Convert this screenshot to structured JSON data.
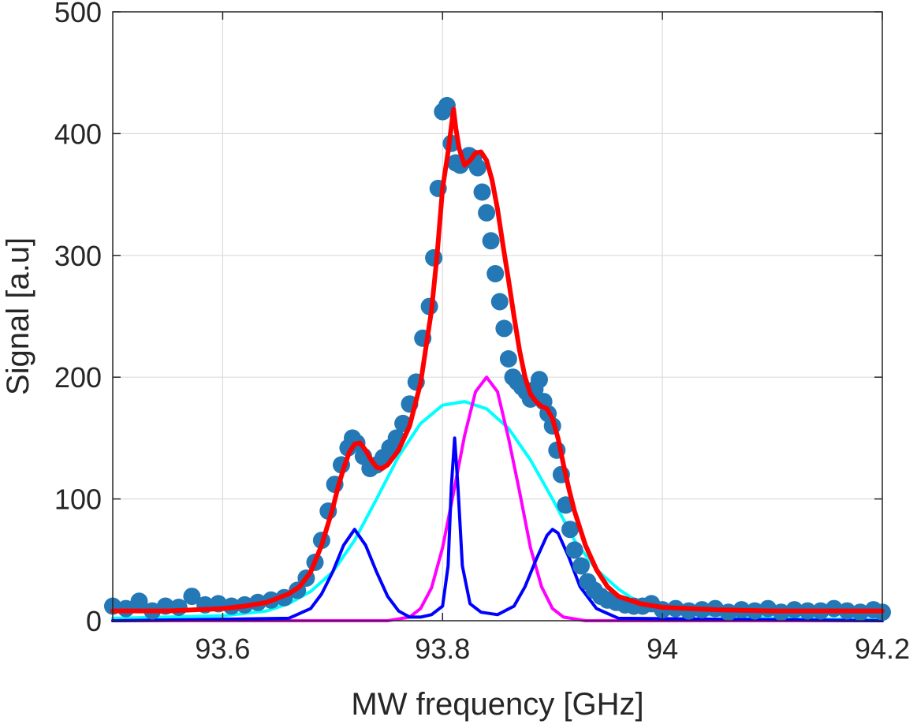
{
  "chart_data": {
    "type": "scatter",
    "title": "",
    "xlabel": "MW frequency [GHz]",
    "ylabel": "Signal [a.u]",
    "xlim": [
      93.5,
      94.2
    ],
    "ylim": [
      0,
      500
    ],
    "grid": true,
    "legend": "none",
    "x_ticks": [
      93.6,
      93.8,
      94,
      94.2
    ],
    "x_tick_labels": [
      "93.6",
      "93.8",
      "94",
      "94.2"
    ],
    "y_ticks": [
      0,
      100,
      200,
      300,
      400,
      500
    ],
    "y_tick_labels": [
      "0",
      "100",
      "200",
      "300",
      "400",
      "500"
    ],
    "measured": {
      "color": "#2378b5",
      "x": [
        93.5,
        93.512,
        93.524,
        93.536,
        93.548,
        93.56,
        93.572,
        93.584,
        93.596,
        93.608,
        93.62,
        93.632,
        93.644,
        93.656,
        93.668,
        93.676,
        93.684,
        93.69,
        93.696,
        93.702,
        93.708,
        93.714,
        93.718,
        93.722,
        93.728,
        93.734,
        93.74,
        93.746,
        93.752,
        93.758,
        93.764,
        93.77,
        93.776,
        93.782,
        93.788,
        93.792,
        93.796,
        93.8,
        93.804,
        93.808,
        93.812,
        93.816,
        93.82,
        93.824,
        93.828,
        93.832,
        93.836,
        93.84,
        93.844,
        93.848,
        93.852,
        93.856,
        93.86,
        93.864,
        93.868,
        93.872,
        93.876,
        93.88,
        93.884,
        93.888,
        93.892,
        93.896,
        93.9,
        93.904,
        93.908,
        93.912,
        93.916,
        93.92,
        93.926,
        93.932,
        93.938,
        93.944,
        93.95,
        93.958,
        93.966,
        93.974,
        93.982,
        93.99,
        94.0,
        94.012,
        94.024,
        94.036,
        94.048,
        94.06,
        94.072,
        94.084,
        94.096,
        94.108,
        94.12,
        94.132,
        94.144,
        94.156,
        94.168,
        94.18,
        94.192,
        94.2
      ],
      "y": [
        12,
        10,
        16,
        8,
        12,
        11,
        20,
        13,
        14,
        12,
        13,
        15,
        17,
        19,
        25,
        35,
        48,
        66,
        90,
        112,
        128,
        142,
        150,
        146,
        135,
        125,
        128,
        134,
        142,
        150,
        162,
        178,
        196,
        232,
        258,
        298,
        355,
        418,
        423,
        392,
        376,
        374,
        378,
        382,
        380,
        372,
        352,
        335,
        312,
        285,
        262,
        240,
        215,
        200,
        196,
        192,
        188,
        182,
        190,
        198,
        180,
        170,
        160,
        140,
        120,
        95,
        75,
        58,
        45,
        32,
        25,
        20,
        17,
        15,
        13,
        12,
        12,
        14,
        9,
        10,
        8,
        9,
        10,
        7,
        9,
        8,
        10,
        7,
        9,
        8,
        8,
        10,
        8,
        7,
        9,
        7
      ]
    },
    "fit_total": {
      "color": "#ff0000",
      "x": [
        93.5,
        93.55,
        93.6,
        93.62,
        93.64,
        93.66,
        93.67,
        93.68,
        93.69,
        93.7,
        93.705,
        93.71,
        93.715,
        93.72,
        93.725,
        93.73,
        93.735,
        93.74,
        93.745,
        93.75,
        93.76,
        93.77,
        93.78,
        93.79,
        93.795,
        93.8,
        93.805,
        93.81,
        93.812,
        93.815,
        93.82,
        93.825,
        93.83,
        93.835,
        93.84,
        93.845,
        93.85,
        93.855,
        93.86,
        93.865,
        93.87,
        93.875,
        93.88,
        93.885,
        93.89,
        93.895,
        93.9,
        93.905,
        93.91,
        93.915,
        93.92,
        93.93,
        93.94,
        93.95,
        93.96,
        93.98,
        94.0,
        94.05,
        94.1,
        94.15,
        94.2
      ],
      "y": [
        8,
        8,
        10,
        12,
        15,
        22,
        28,
        40,
        62,
        92,
        110,
        125,
        138,
        145,
        146,
        140,
        132,
        126,
        125,
        128,
        140,
        160,
        195,
        255,
        300,
        355,
        385,
        420,
        405,
        388,
        374,
        378,
        384,
        385,
        378,
        362,
        338,
        308,
        280,
        250,
        222,
        200,
        186,
        180,
        176,
        174,
        166,
        150,
        128,
        108,
        90,
        62,
        42,
        28,
        20,
        14,
        11,
        9,
        8,
        8,
        8
      ]
    },
    "components": [
      {
        "color": "#00ffff",
        "x": [
          93.5,
          93.6,
          93.64,
          93.66,
          93.68,
          93.7,
          93.72,
          93.74,
          93.76,
          93.78,
          93.8,
          93.82,
          93.84,
          93.86,
          93.88,
          93.9,
          93.92,
          93.94,
          93.96,
          93.98,
          94.02,
          94.1,
          94.2
        ],
        "y": [
          2,
          4,
          8,
          14,
          24,
          40,
          66,
          100,
          135,
          162,
          177,
          180,
          174,
          158,
          132,
          100,
          66,
          42,
          26,
          14,
          6,
          2,
          1
        ]
      },
      {
        "color": "#ff00ff",
        "x": [
          93.5,
          93.75,
          93.77,
          93.78,
          93.79,
          93.8,
          93.81,
          93.82,
          93.83,
          93.84,
          93.85,
          93.86,
          93.87,
          93.88,
          93.89,
          93.9,
          93.91,
          93.93,
          94.2
        ],
        "y": [
          0,
          0,
          3,
          10,
          27,
          60,
          105,
          152,
          188,
          200,
          188,
          150,
          106,
          60,
          28,
          10,
          3,
          0,
          0
        ]
      },
      {
        "color": "#0000ff",
        "x": [
          93.5,
          93.66,
          93.68,
          93.69,
          93.7,
          93.71,
          93.72,
          93.73,
          93.74,
          93.75,
          93.76,
          93.77,
          93.78,
          93.79,
          93.8,
          93.805,
          93.808,
          93.811,
          93.814,
          93.818,
          93.825,
          93.835,
          93.85,
          93.865,
          93.875,
          93.885,
          93.895,
          93.9,
          93.905,
          93.915,
          93.925,
          93.94,
          93.96,
          94.2
        ],
        "y": [
          0,
          2,
          10,
          22,
          40,
          62,
          75,
          62,
          40,
          20,
          8,
          3,
          3,
          5,
          12,
          45,
          110,
          150,
          110,
          45,
          14,
          7,
          5,
          12,
          28,
          50,
          70,
          75,
          72,
          52,
          28,
          10,
          2,
          0
        ]
      }
    ]
  }
}
